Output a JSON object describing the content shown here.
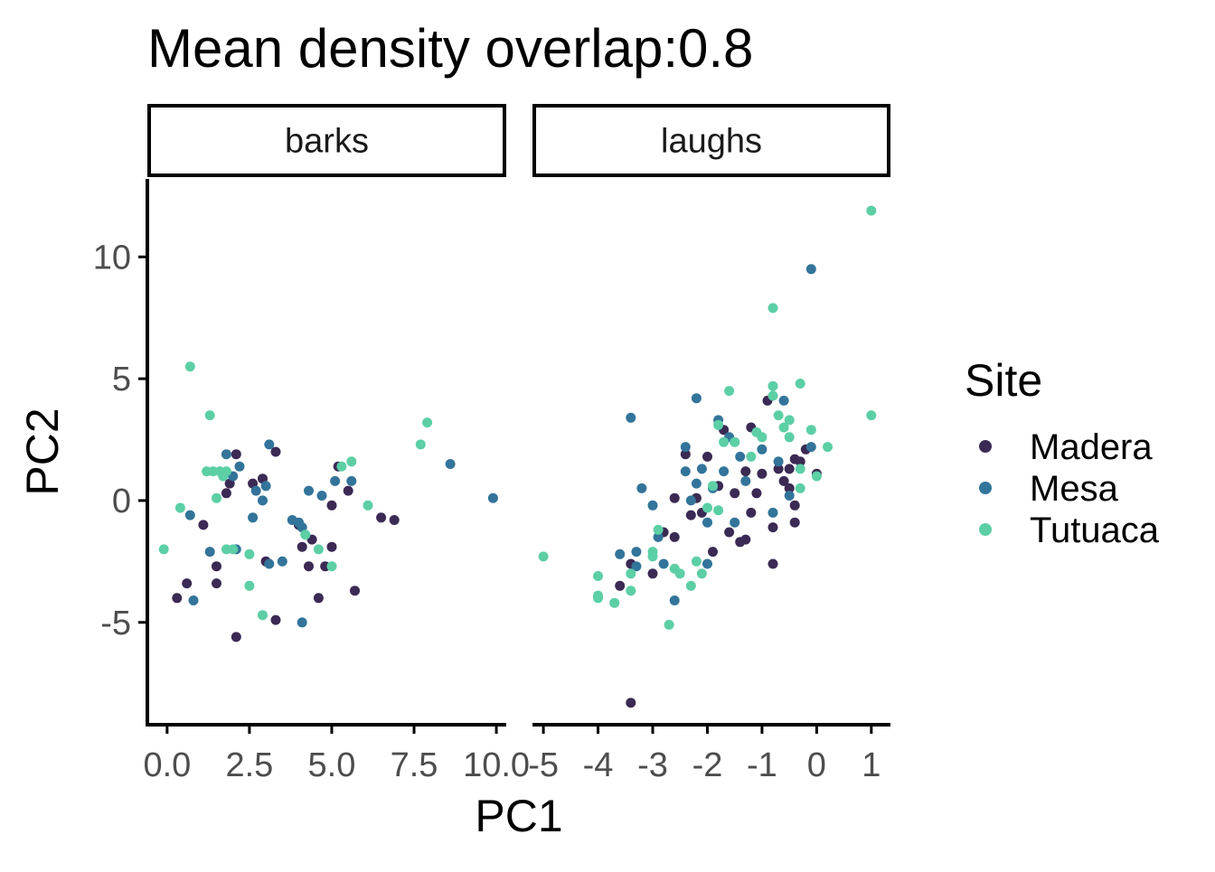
{
  "chart_data": {
    "type": "scatter",
    "title": "Mean density overlap:0.8",
    "xlabel": "PC1",
    "ylabel": "PC2",
    "ylim": [
      -9.2,
      13.2
    ],
    "yticks": [
      10,
      5,
      0,
      -5
    ],
    "ytick_labels": [
      "10",
      "5",
      "0",
      "-5"
    ],
    "grid": false,
    "legend": {
      "title": "Site",
      "position": "right",
      "entries": [
        {
          "name": "Madera",
          "color": "#3b2a54"
        },
        {
          "name": "Mesa",
          "color": "#33749a"
        },
        {
          "name": "Tutuaca",
          "color": "#5ccfa5"
        }
      ]
    },
    "facets": [
      {
        "label": "barks",
        "xlim": [
          -0.6,
          10.3
        ],
        "xticks": [
          0,
          2.5,
          5,
          7.5,
          10
        ],
        "xtick_labels": [
          "0.0",
          "2.5",
          "5.0",
          "7.5",
          "10.0"
        ],
        "series": [
          {
            "name": "Madera",
            "points": [
              [
                0.3,
                -4.0
              ],
              [
                0.6,
                -3.4
              ],
              [
                1.1,
                -1.0
              ],
              [
                1.5,
                -2.7
              ],
              [
                1.5,
                -3.4
              ],
              [
                1.8,
                0.3
              ],
              [
                1.9,
                0.7
              ],
              [
                2.1,
                1.9
              ],
              [
                2.1,
                -5.6
              ],
              [
                2.6,
                0.7
              ],
              [
                2.9,
                0.9
              ],
              [
                3.0,
                -2.5
              ],
              [
                3.3,
                2.0
              ],
              [
                3.3,
                -4.9
              ],
              [
                4.0,
                -1.0
              ],
              [
                4.1,
                -1.9
              ],
              [
                4.3,
                -2.7
              ],
              [
                4.4,
                -1.6
              ],
              [
                4.6,
                -4.0
              ],
              [
                4.8,
                -2.7
              ],
              [
                5.0,
                -0.2
              ],
              [
                5.0,
                -1.9
              ],
              [
                5.2,
                1.4
              ],
              [
                5.5,
                0.4
              ],
              [
                5.7,
                -3.7
              ],
              [
                6.5,
                -0.7
              ],
              [
                6.9,
                -0.8
              ]
            ]
          },
          {
            "name": "Mesa",
            "points": [
              [
                0.7,
                -0.6
              ],
              [
                0.8,
                -4.1
              ],
              [
                1.3,
                -2.1
              ],
              [
                1.8,
                1.9
              ],
              [
                2.0,
                1.0
              ],
              [
                2.1,
                -2.0
              ],
              [
                2.2,
                1.4
              ],
              [
                2.6,
                -0.7
              ],
              [
                2.7,
                0.4
              ],
              [
                2.9,
                0.0
              ],
              [
                3.0,
                0.6
              ],
              [
                3.1,
                2.3
              ],
              [
                3.1,
                -2.6
              ],
              [
                3.5,
                -2.5
              ],
              [
                3.8,
                -0.8
              ],
              [
                4.0,
                -0.9
              ],
              [
                4.1,
                -5.0
              ],
              [
                4.1,
                -1.1
              ],
              [
                4.3,
                0.4
              ],
              [
                4.7,
                0.2
              ],
              [
                5.1,
                0.8
              ],
              [
                5.6,
                0.8
              ],
              [
                8.6,
                1.5
              ],
              [
                9.9,
                0.1
              ]
            ]
          },
          {
            "name": "Tutuaca",
            "points": [
              [
                -0.1,
                -2.0
              ],
              [
                0.4,
                -0.3
              ],
              [
                0.7,
                5.5
              ],
              [
                1.2,
                1.2
              ],
              [
                1.3,
                3.5
              ],
              [
                1.4,
                1.2
              ],
              [
                1.5,
                0.1
              ],
              [
                1.6,
                1.2
              ],
              [
                1.7,
                1.0
              ],
              [
                1.8,
                1.2
              ],
              [
                1.8,
                -2.0
              ],
              [
                2.0,
                -2.0
              ],
              [
                2.5,
                -2.2
              ],
              [
                2.5,
                -3.5
              ],
              [
                2.9,
                -4.7
              ],
              [
                4.2,
                -1.4
              ],
              [
                4.6,
                -2.0
              ],
              [
                5.0,
                -2.7
              ],
              [
                5.3,
                1.4
              ],
              [
                5.6,
                1.6
              ],
              [
                6.1,
                -0.2
              ],
              [
                7.7,
                2.3
              ],
              [
                7.9,
                3.2
              ]
            ]
          }
        ]
      },
      {
        "label": "laughs",
        "xlim": [
          -5.2,
          1.35
        ],
        "xticks": [
          -5,
          -4,
          -3,
          -2,
          -1,
          0,
          1
        ],
        "xtick_labels": [
          "-5",
          "-4",
          "-3",
          "-2",
          "-1",
          "0",
          "1"
        ],
        "series": [
          {
            "name": "Madera",
            "points": [
              [
                -3.6,
                -3.5
              ],
              [
                -3.4,
                -2.6
              ],
              [
                -3.4,
                -8.3
              ],
              [
                -3.0,
                -3.0
              ],
              [
                -2.8,
                -1.3
              ],
              [
                -2.6,
                -1.5
              ],
              [
                -2.6,
                0.1
              ],
              [
                -2.4,
                1.9
              ],
              [
                -2.3,
                -0.6
              ],
              [
                -2.2,
                0.1
              ],
              [
                -2.1,
                -0.5
              ],
              [
                -2.0,
                1.8
              ],
              [
                -1.9,
                -2.1
              ],
              [
                -1.8,
                0.6
              ],
              [
                -1.7,
                2.9
              ],
              [
                -1.6,
                -1.3
              ],
              [
                -1.5,
                0.3
              ],
              [
                -1.4,
                -1.7
              ],
              [
                -1.3,
                1.2
              ],
              [
                -1.3,
                -1.6
              ],
              [
                -1.2,
                -0.5
              ],
              [
                -1.2,
                3.0
              ],
              [
                -1.1,
                0.3
              ],
              [
                -1.0,
                1.1
              ],
              [
                -0.9,
                4.1
              ],
              [
                -0.8,
                -1.1
              ],
              [
                -0.8,
                -2.6
              ],
              [
                -0.7,
                1.3
              ],
              [
                -0.6,
                0.8
              ],
              [
                -0.5,
                0.5
              ],
              [
                -0.5,
                1.3
              ],
              [
                -0.4,
                1.7
              ],
              [
                -0.4,
                -0.9
              ],
              [
                -0.4,
                -0.2
              ],
              [
                -0.3,
                1.6
              ],
              [
                -0.2,
                2.1
              ],
              [
                0.0,
                1.1
              ]
            ]
          },
          {
            "name": "Mesa",
            "points": [
              [
                -3.6,
                -2.2
              ],
              [
                -3.4,
                3.4
              ],
              [
                -3.3,
                -2.1
              ],
              [
                -3.3,
                -2.7
              ],
              [
                -3.2,
                0.5
              ],
              [
                -3.0,
                -0.2
              ],
              [
                -2.9,
                -1.5
              ],
              [
                -2.8,
                -2.6
              ],
              [
                -2.6,
                -4.1
              ],
              [
                -2.4,
                1.2
              ],
              [
                -2.4,
                2.2
              ],
              [
                -2.3,
                0.0
              ],
              [
                -2.2,
                0.7
              ],
              [
                -2.2,
                4.2
              ],
              [
                -2.1,
                1.3
              ],
              [
                -2.0,
                -0.9
              ],
              [
                -2.0,
                -2.6
              ],
              [
                -1.9,
                0.5
              ],
              [
                -1.8,
                3.3
              ],
              [
                -1.7,
                1.2
              ],
              [
                -1.6,
                2.6
              ],
              [
                -1.5,
                -0.9
              ],
              [
                -1.4,
                1.8
              ],
              [
                -1.3,
                0.8
              ],
              [
                -1.0,
                2.1
              ],
              [
                -0.8,
                -0.5
              ],
              [
                -0.7,
                1.6
              ],
              [
                -0.6,
                4.1
              ],
              [
                -0.5,
                0.2
              ],
              [
                -0.1,
                9.5
              ],
              [
                -0.1,
                2.2
              ]
            ]
          },
          {
            "name": "Tutuaca",
            "points": [
              [
                -5.0,
                -2.3
              ],
              [
                -4.0,
                -3.1
              ],
              [
                -4.0,
                -3.9
              ],
              [
                -4.0,
                -4.0
              ],
              [
                -3.7,
                -4.2
              ],
              [
                -3.4,
                -3.0
              ],
              [
                -3.4,
                -3.7
              ],
              [
                -3.0,
                -2.3
              ],
              [
                -3.0,
                -2.1
              ],
              [
                -2.9,
                -1.2
              ],
              [
                -2.7,
                -5.1
              ],
              [
                -2.6,
                -2.8
              ],
              [
                -2.5,
                -3.0
              ],
              [
                -2.3,
                -3.5
              ],
              [
                -2.2,
                -2.5
              ],
              [
                -2.1,
                -3.0
              ],
              [
                -2.0,
                -0.3
              ],
              [
                -1.9,
                0.6
              ],
              [
                -1.8,
                3.1
              ],
              [
                -1.8,
                -0.4
              ],
              [
                -1.7,
                2.4
              ],
              [
                -1.6,
                4.5
              ],
              [
                -1.5,
                2.4
              ],
              [
                -1.2,
                1.8
              ],
              [
                -1.1,
                2.8
              ],
              [
                -1.0,
                2.6
              ],
              [
                -0.8,
                4.3
              ],
              [
                -0.8,
                7.9
              ],
              [
                -0.8,
                4.7
              ],
              [
                -0.7,
                3.5
              ],
              [
                -0.6,
                3.0
              ],
              [
                -0.5,
                3.3
              ],
              [
                -0.5,
                2.6
              ],
              [
                -0.3,
                4.8
              ],
              [
                -0.3,
                1.3
              ],
              [
                -0.3,
                0.5
              ],
              [
                -0.1,
                2.9
              ],
              [
                0.0,
                1.0
              ],
              [
                0.2,
                2.2
              ],
              [
                1.0,
                11.9
              ],
              [
                1.0,
                3.5
              ]
            ]
          }
        ]
      }
    ]
  }
}
